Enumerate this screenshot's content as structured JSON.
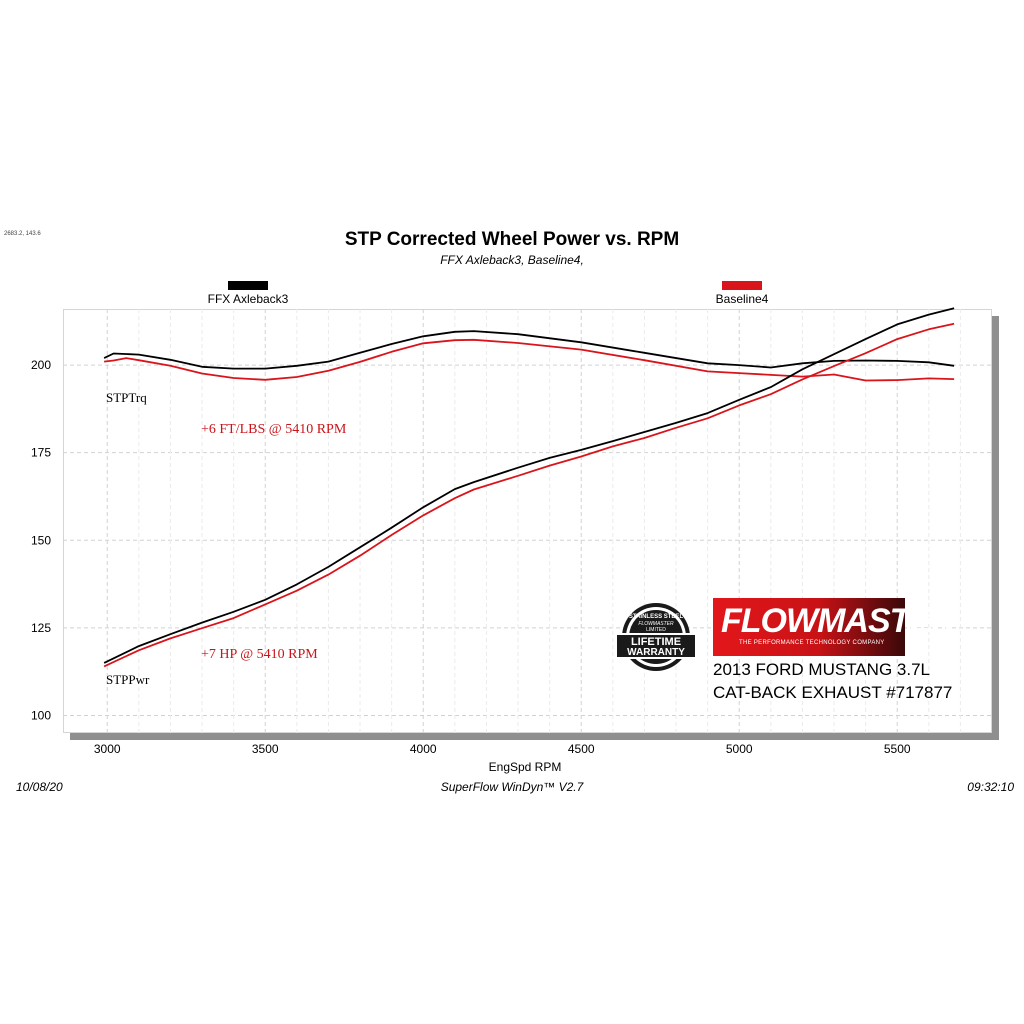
{
  "corner_note": "2683.2, 143.6",
  "legend": [
    {
      "label": "FFX Axleback3",
      "color": "#000000"
    },
    {
      "label": "Baseline4",
      "color": "#d9141a"
    }
  ],
  "annotations": {
    "torque_series_label": "STPTrq",
    "power_series_label": "STPPwr",
    "torque_gain": "+6 FT/LBS @ 5410 RPM",
    "power_gain": "+7 HP @ 5410 RPM"
  },
  "footer": {
    "date": "10/08/20",
    "software": "SuperFlow WinDyn™  V2.7",
    "time": "09:32:10"
  },
  "branding": {
    "badge_top": "STAINLESS STEEL",
    "badge_brand": "FLOWMASTER",
    "badge_limited": "LIMITED",
    "badge_line1": "LIFETIME",
    "badge_line2": "WARRANTY",
    "logo": "FLOWMASTER",
    "tagline": "THE PERFORMANCE TECHNOLOGY COMPANY",
    "vehicle_line_1": "2013 FORD MUSTANG 3.7L",
    "vehicle_line_2": "CAT-BACK EXHAUST #717877"
  },
  "chart_data": {
    "type": "line",
    "title": "STP Corrected Wheel Power vs. RPM",
    "subtitle": "FFX Axleback3, Baseline4,",
    "xlabel": "EngSpd  RPM",
    "ylabel": "",
    "xlim": [
      2860,
      5800
    ],
    "ylim": [
      95,
      216
    ],
    "xticks": [
      3000,
      3500,
      4000,
      4500,
      5000,
      5500
    ],
    "yticks": [
      100,
      125,
      150,
      175,
      200
    ],
    "grid": true,
    "legend_position": "top",
    "series": [
      {
        "name": "FFX Axleback3",
        "metric": "STPTrq",
        "color": "#000000",
        "x": [
          2990,
          3020,
          3100,
          3200,
          3300,
          3400,
          3500,
          3600,
          3700,
          3800,
          3900,
          4000,
          4100,
          4160,
          4300,
          4500,
          4700,
          4900,
          5000,
          5100,
          5200,
          5300,
          5400,
          5500,
          5600,
          5680
        ],
        "y": [
          202,
          203.3,
          203,
          201.5,
          199.5,
          199,
          199,
          199.8,
          201,
          203.5,
          206,
          208.2,
          209.5,
          209.7,
          208.8,
          206.5,
          203.5,
          200.5,
          200,
          199.3,
          200.5,
          201.2,
          201.3,
          201.2,
          200.8,
          199.8
        ]
      },
      {
        "name": "Baseline4",
        "metric": "STPTrq",
        "color": "#d9141a",
        "x": [
          2990,
          3020,
          3060,
          3100,
          3200,
          3300,
          3400,
          3500,
          3600,
          3700,
          3800,
          3900,
          4000,
          4100,
          4160,
          4300,
          4500,
          4700,
          4900,
          5000,
          5100,
          5200,
          5300,
          5400,
          5500,
          5600,
          5680
        ],
        "y": [
          201,
          201.3,
          202,
          201.4,
          199.8,
          197.6,
          196.3,
          195.8,
          196.6,
          198.4,
          200.9,
          203.8,
          206.2,
          207.1,
          207.2,
          206.3,
          204.4,
          201.4,
          198.2,
          197.7,
          197.2,
          196.7,
          197.3,
          195.6,
          195.7,
          196.2,
          196
        ]
      },
      {
        "name": "FFX Axleback3",
        "metric": "STPPwr",
        "color": "#000000",
        "x": [
          2990,
          3100,
          3200,
          3300,
          3400,
          3500,
          3600,
          3700,
          3800,
          3900,
          4000,
          4100,
          4160,
          4300,
          4400,
          4500,
          4600,
          4700,
          4800,
          4900,
          5000,
          5100,
          5200,
          5300,
          5400,
          5500,
          5600,
          5680
        ],
        "y": [
          115,
          119.8,
          123.2,
          126.5,
          129.6,
          133,
          137.4,
          142.4,
          148,
          153.6,
          159.4,
          164.6,
          166.6,
          170.7,
          173.5,
          175.8,
          178.3,
          180.9,
          183.5,
          186.3,
          190.1,
          193.7,
          198.8,
          203.1,
          207.4,
          211.6,
          214.4,
          216.2
        ]
      },
      {
        "name": "Baseline4",
        "metric": "STPPwr",
        "color": "#d9141a",
        "x": [
          2990,
          3100,
          3200,
          3300,
          3400,
          3500,
          3600,
          3700,
          3800,
          3900,
          4000,
          4100,
          4160,
          4300,
          4400,
          4500,
          4600,
          4700,
          4800,
          4900,
          5000,
          5100,
          5200,
          5300,
          5400,
          5500,
          5600,
          5680
        ],
        "y": [
          114,
          118.6,
          122,
          124.9,
          127.8,
          131.7,
          135.6,
          140.2,
          145.6,
          151.5,
          157.1,
          162,
          164.5,
          168.4,
          171.3,
          173.9,
          176.8,
          179.2,
          182.1,
          184.8,
          188.5,
          191.7,
          195.9,
          199.7,
          203.4,
          207.4,
          210.2,
          211.8
        ]
      }
    ]
  }
}
